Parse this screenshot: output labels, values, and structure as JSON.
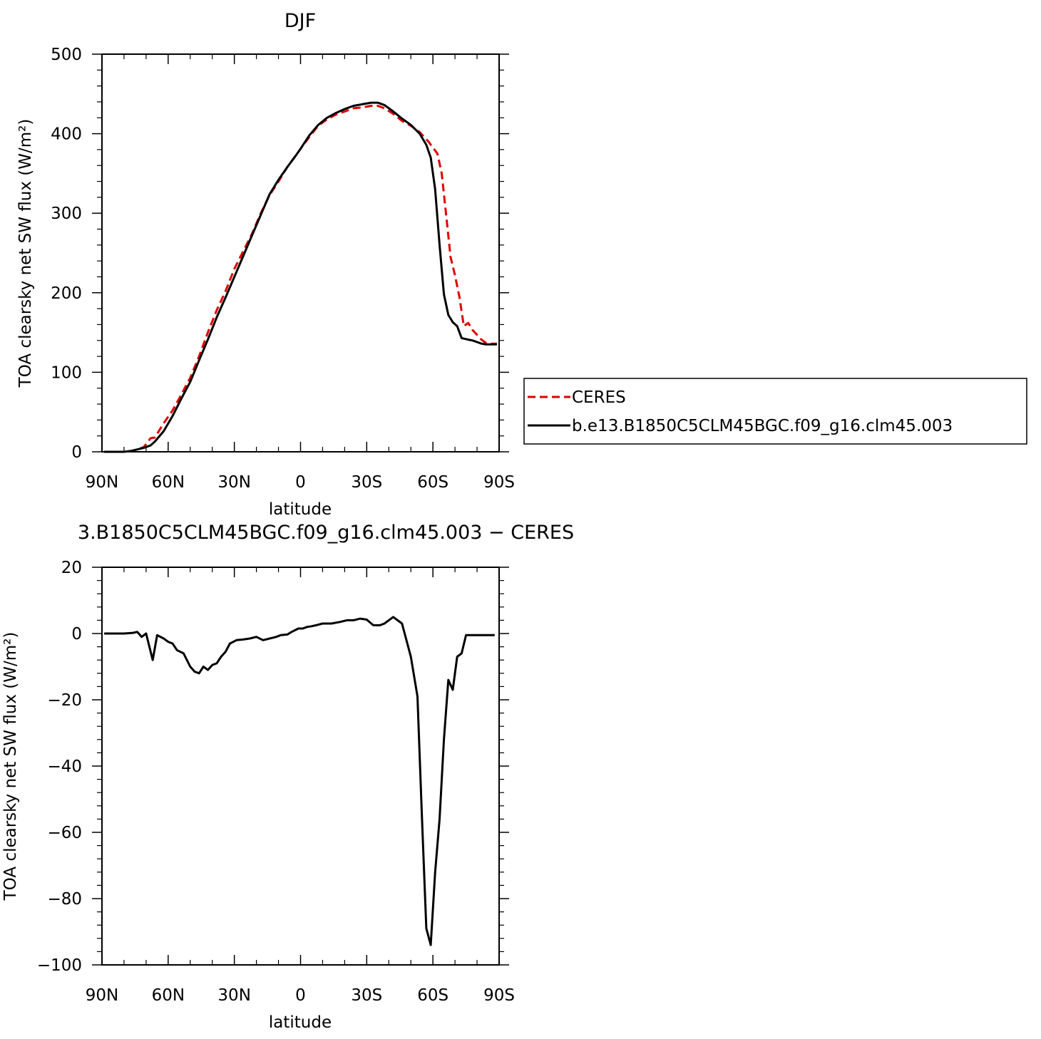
{
  "chart_data": [
    {
      "type": "line",
      "title": "DJF",
      "xlabel": "latitude",
      "ylabel": "TOA clearsky net SW flux (W/m²)",
      "xlim": [
        90,
        -90
      ],
      "ylim": [
        0,
        500
      ],
      "x_ticks": [
        90,
        60,
        30,
        0,
        -30,
        -60,
        -90
      ],
      "x_tick_labels": [
        "90N",
        "60N",
        "30N",
        "0",
        "30S",
        "60S",
        "90S"
      ],
      "y_ticks": [
        0,
        100,
        200,
        300,
        400,
        500
      ],
      "y_tick_labels": [
        "0",
        "100",
        "200",
        "300",
        "400",
        "500"
      ],
      "legend_position": "right",
      "grid": false,
      "series": [
        {
          "name": "CERES",
          "color": "#e00000",
          "dash": "dashed",
          "x": [
            89,
            85,
            80,
            77,
            74,
            71,
            68,
            66,
            62,
            58,
            55,
            50,
            46,
            42,
            38,
            34,
            30,
            26,
            22,
            18,
            14,
            10,
            6,
            2,
            0,
            -4,
            -8,
            -12,
            -16,
            -20,
            -24,
            -28,
            -32,
            -35,
            -38,
            -42,
            -46,
            -50,
            -54,
            -58,
            -62,
            -64,
            -66,
            -68,
            -70,
            -72,
            -74,
            -76,
            -78,
            -80,
            -82,
            -84,
            -86,
            -89
          ],
          "y": [
            0,
            0,
            0,
            1,
            3,
            6,
            17,
            18,
            36,
            52,
            67,
            93,
            120,
            150,
            178,
            202,
            230,
            252,
            274,
            300,
            323,
            340,
            358,
            373,
            381,
            396,
            410,
            418,
            424,
            428,
            432,
            433,
            435,
            435,
            432,
            425,
            416,
            410,
            402,
            390,
            375,
            350,
            298,
            245,
            222,
            195,
            158,
            162,
            153,
            147,
            141,
            137,
            136,
            136
          ]
        },
        {
          "name": "b.e13.B1850C5CLM45BGC.f09_g16.clm45.003",
          "color": "#000000",
          "dash": "solid",
          "x": [
            89,
            85,
            80,
            77,
            74,
            71,
            68,
            66,
            62,
            58,
            54,
            50,
            46,
            42,
            38,
            34,
            30,
            26,
            22,
            18,
            14,
            10,
            6,
            2,
            0,
            -4,
            -8,
            -12,
            -16,
            -20,
            -24,
            -28,
            -32,
            -35,
            -38,
            -42,
            -46,
            -50,
            -54,
            -57,
            -59,
            -61,
            -63,
            -65,
            -67,
            -69,
            -71,
            -73,
            -76,
            -78,
            -80,
            -82,
            -84,
            -86,
            -89
          ],
          "y": [
            0,
            0,
            0,
            1,
            3,
            5,
            8,
            13,
            26,
            45,
            67,
            88,
            115,
            141,
            169,
            194,
            220,
            246,
            272,
            298,
            324,
            342,
            358,
            373,
            381,
            398,
            411,
            420,
            426,
            431,
            435,
            437,
            439,
            439,
            436,
            428,
            419,
            411,
            400,
            386,
            370,
            330,
            260,
            198,
            172,
            163,
            158,
            143,
            141,
            140,
            138,
            136,
            135,
            135,
            135
          ]
        }
      ]
    },
    {
      "type": "line",
      "title": "3.B1850C5CLM45BGC.f09_g16.clm45.003 − CERES",
      "xlabel": "latitude",
      "ylabel": "TOA clearsky net SW flux (W/m²)",
      "xlim": [
        90,
        -90
      ],
      "ylim": [
        -100,
        20
      ],
      "x_ticks": [
        90,
        60,
        30,
        0,
        -30,
        -60,
        -90
      ],
      "x_tick_labels": [
        "90N",
        "60N",
        "30N",
        "0",
        "30S",
        "60S",
        "90S"
      ],
      "y_ticks": [
        -100,
        -80,
        -60,
        -40,
        -20,
        0,
        20
      ],
      "y_tick_labels": [
        "−100",
        "−80",
        "−60",
        "−40",
        "−20",
        "0",
        "20"
      ],
      "grid": false,
      "series": [
        {
          "color": "#000000",
          "dash": "solid",
          "x": [
            89,
            85,
            80,
            76,
            74,
            72,
            70,
            67,
            65,
            62,
            60,
            58,
            56,
            53,
            50,
            48,
            46,
            44,
            42,
            40,
            38,
            36,
            34,
            32,
            29,
            26,
            23,
            20,
            17,
            14,
            11,
            9,
            6,
            4,
            1,
            -1,
            -3,
            -5,
            -7,
            -10,
            -14,
            -18,
            -21,
            -24,
            -27,
            -30,
            -33,
            -36,
            -38,
            -40,
            -42,
            -46,
            -50,
            -53,
            -55,
            -57,
            -59,
            -61,
            -63,
            -65,
            -67,
            -69,
            -71,
            -73,
            -75,
            -77,
            -79,
            -81,
            -83,
            -85,
            -88
          ],
          "y": [
            0,
            0,
            0,
            0.2,
            0.5,
            -1,
            0,
            -8,
            -0.5,
            -1.5,
            -2.5,
            -3,
            -5,
            -6,
            -10,
            -11.5,
            -12,
            -10,
            -11,
            -9.5,
            -9,
            -7,
            -5.5,
            -3,
            -2,
            -1.8,
            -1.5,
            -1,
            -2,
            -1.5,
            -1,
            -0.5,
            -0.3,
            0.5,
            1.5,
            1.5,
            2,
            2.2,
            2.5,
            3,
            3,
            3.5,
            4,
            4,
            4.5,
            4.2,
            2.5,
            2.5,
            3,
            4,
            5,
            3,
            -7,
            -19,
            -55,
            -89,
            -94,
            -72,
            -56,
            -32,
            -14,
            -17,
            -7,
            -6,
            -0.5,
            -0.5,
            -0.5,
            -0.5,
            -0.5,
            -0.5,
            -0.5
          ]
        }
      ]
    }
  ]
}
